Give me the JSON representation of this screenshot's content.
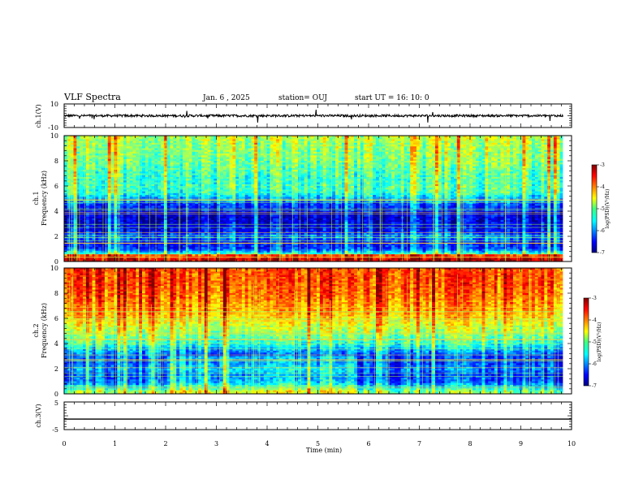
{
  "header": {
    "title": "VLF Spectra",
    "date": "Jan. 6 , 2025",
    "station": "station= OUJ",
    "start": "start UT =  16: 10: 0"
  },
  "chart_data": [
    {
      "type": "line",
      "panel": "waveform-ch1",
      "ylabel": "ch.1(V)",
      "ylim": [
        -10,
        10
      ],
      "yticks": [
        "10",
        "-10"
      ],
      "xlim": [
        0,
        10
      ],
      "description_values": {
        "baseline_level": 0,
        "typical_amplitude": 1,
        "max_spike": 6
      }
    },
    {
      "type": "heatmap",
      "panel": "spectrogram-ch1",
      "ylabel": "ch.1 Frequency (kHz)",
      "ylim": [
        0,
        10
      ],
      "yticks": [
        "0",
        "2",
        "4",
        "6",
        "8",
        "10"
      ],
      "xlim": [
        0,
        10
      ],
      "data_end_min": 9.83,
      "colorbar": {
        "label": "log(PSD)(V²/Hz)",
        "min": -7,
        "max": -3,
        "ticks": [
          "-3",
          "-4",
          "-5",
          "-6",
          "-7"
        ]
      },
      "frequency_profile_log_psd": [
        [
          0.2,
          -4.5
        ],
        [
          0.5,
          -5.0
        ],
        [
          1.0,
          -6.3
        ],
        [
          1.5,
          -6.4
        ],
        [
          2.0,
          -6.0
        ],
        [
          2.4,
          -6.5
        ],
        [
          3.0,
          -6.6
        ],
        [
          3.5,
          -6.7
        ],
        [
          4.0,
          -6.5
        ],
        [
          4.6,
          -6.2
        ],
        [
          5.0,
          -5.8
        ],
        [
          5.5,
          -5.3
        ],
        [
          6.0,
          -5.2
        ],
        [
          6.5,
          -5.3
        ],
        [
          7.0,
          -5.2
        ],
        [
          8.0,
          -5.0
        ],
        [
          9.0,
          -4.9
        ],
        [
          9.8,
          -4.8
        ]
      ]
    },
    {
      "type": "heatmap",
      "panel": "spectrogram-ch2",
      "ylabel": "ch.2 Frequency (kHz)",
      "ylim": [
        0,
        10
      ],
      "yticks": [
        "0",
        "2",
        "4",
        "6",
        "8",
        "10"
      ],
      "xlim": [
        0,
        10
      ],
      "data_end_min": 9.83,
      "colorbar": {
        "label": "log(PSD)(V²/Hz)",
        "min": -7,
        "max": -3,
        "ticks": [
          "-3",
          "-4",
          "-5",
          "-6",
          "-7"
        ]
      },
      "frequency_profile_log_psd": [
        [
          0.2,
          -5.0
        ],
        [
          0.5,
          -5.6
        ],
        [
          1.0,
          -6.2
        ],
        [
          1.5,
          -6.3
        ],
        [
          2.0,
          -6.0
        ],
        [
          2.5,
          -6.3
        ],
        [
          3.0,
          -6.2
        ],
        [
          3.5,
          -5.8
        ],
        [
          4.0,
          -5.3
        ],
        [
          4.5,
          -5.1
        ],
        [
          5.0,
          -4.8
        ],
        [
          5.5,
          -4.6
        ],
        [
          6.0,
          -4.4
        ],
        [
          6.5,
          -4.2
        ],
        [
          7.0,
          -4.1
        ],
        [
          8.0,
          -3.9
        ],
        [
          9.0,
          -3.8
        ],
        [
          9.8,
          -3.8
        ]
      ]
    },
    {
      "type": "line",
      "panel": "waveform-ch3",
      "ylabel": "ch.3(V)",
      "ylim": [
        -5,
        5
      ],
      "yticks": [
        "5",
        "-5"
      ],
      "xlim": [
        0,
        10
      ],
      "xticks": [
        "0",
        "1",
        "2",
        "3",
        "4",
        "5",
        "6",
        "7",
        "8",
        "9",
        "10"
      ],
      "xlabel": "Time (min)",
      "series": [
        {
          "x": [
            0,
            10
          ],
          "y": [
            -1.2,
            -1.2
          ]
        }
      ]
    }
  ],
  "colors": {
    "frame": "#000000",
    "background": "#ffffff"
  }
}
